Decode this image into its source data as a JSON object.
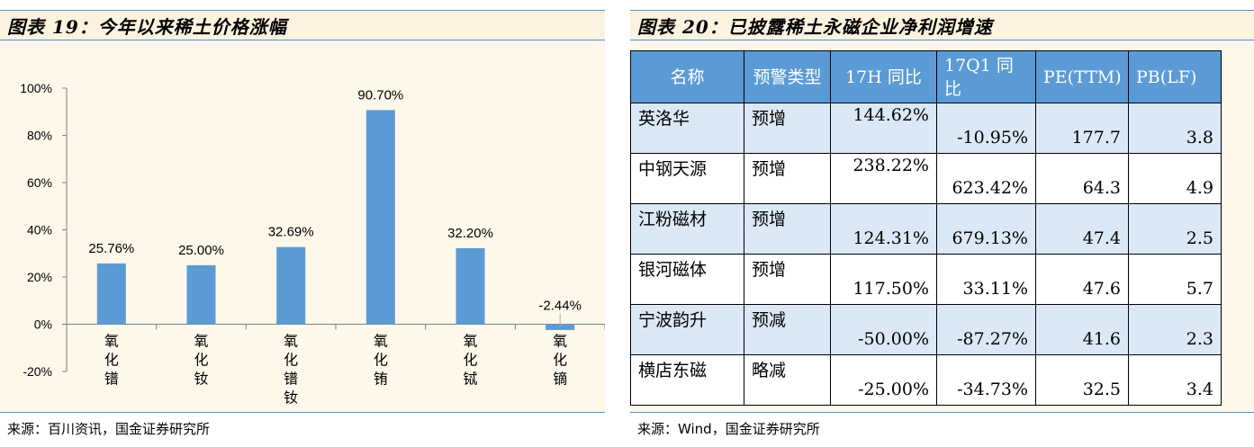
{
  "left": {
    "title": "图表 19：今年以来稀土价格涨幅",
    "source": "来源：百川资讯，国金证券研究所"
  },
  "chart_data": {
    "type": "bar",
    "categories": [
      "氧化镨",
      "氧化钕",
      "氧化镨钕",
      "氧化铕",
      "氧化铽",
      "氧化镝"
    ],
    "values": [
      25.76,
      25.0,
      32.69,
      90.7,
      32.2,
      -2.44
    ],
    "data_labels": [
      "25.76%",
      "25.00%",
      "32.69%",
      "90.70%",
      "32.20%",
      "-2.44%"
    ],
    "y_ticks": [
      "100%",
      "80%",
      "60%",
      "40%",
      "20%",
      "0%",
      "-20%"
    ],
    "ylim": [
      -20,
      100
    ],
    "bar_color": "#5b9bd5",
    "grid": false
  },
  "right": {
    "title": "图表 20：已披露稀土永磁企业净利润增速",
    "source": "来源：Wind，国金证券研究所",
    "header": [
      "名称",
      "预警类型",
      "17H 同比",
      "17Q1 同比",
      "PE(TTM)",
      "PB(LF)"
    ],
    "rows": [
      {
        "name": "英洛华",
        "type": "预增",
        "h": "144.62%",
        "q": "-10.95%",
        "pe": "177.7",
        "pb": "3.8"
      },
      {
        "name": "中钢天源",
        "type": "预增",
        "h": "238.22%",
        "q": "623.42%",
        "pe": "64.3",
        "pb": "4.9"
      },
      {
        "name": "江粉磁材",
        "type": "预增",
        "h": "124.31%",
        "q": "679.13%",
        "pe": "47.4",
        "pb": "2.5"
      },
      {
        "name": "银河磁体",
        "type": "预增",
        "h": "117.50%",
        "q": "33.11%",
        "pe": "47.6",
        "pb": "5.7"
      },
      {
        "name": "宁波韵升",
        "type": "预减",
        "h": "-50.00%",
        "q": "-87.27%",
        "pe": "41.6",
        "pb": "2.3"
      },
      {
        "name": "横店东磁",
        "type": "略减",
        "h": "-25.00%",
        "q": "-34.73%",
        "pe": "32.5",
        "pb": "3.4"
      }
    ],
    "header_color": "#5b9bd5",
    "stripe_color": "#dbe8f6"
  }
}
